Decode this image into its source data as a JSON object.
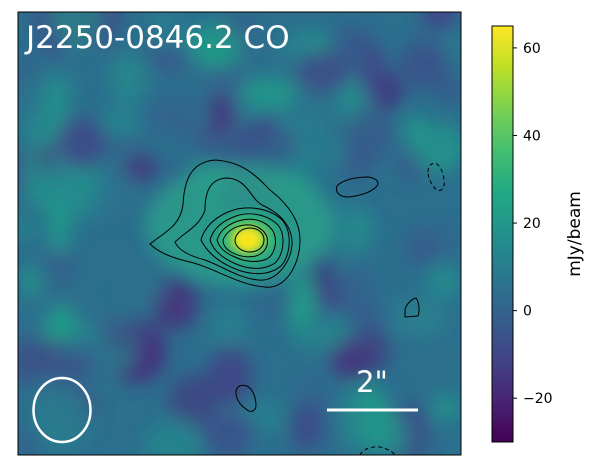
{
  "title": "J2250-0846.2 CO",
  "scale_bar": {
    "label": "2\""
  },
  "colorbar": {
    "label": "mJy/beam",
    "colormap": "viridis",
    "range": [
      -30,
      65
    ],
    "ticks": [
      {
        "value": 60,
        "label": "60"
      },
      {
        "value": 40,
        "label": "40"
      },
      {
        "value": 20,
        "label": "20"
      },
      {
        "value": 0,
        "label": "0"
      },
      {
        "value": -20,
        "label": "−20"
      }
    ]
  },
  "colors": {
    "text_on_image": "#ffffff",
    "contour": "#000000",
    "frame": "#000000"
  },
  "elements": {
    "beam": "beam-ellipse",
    "contours": "positive contours solid, negative contours dashed"
  }
}
